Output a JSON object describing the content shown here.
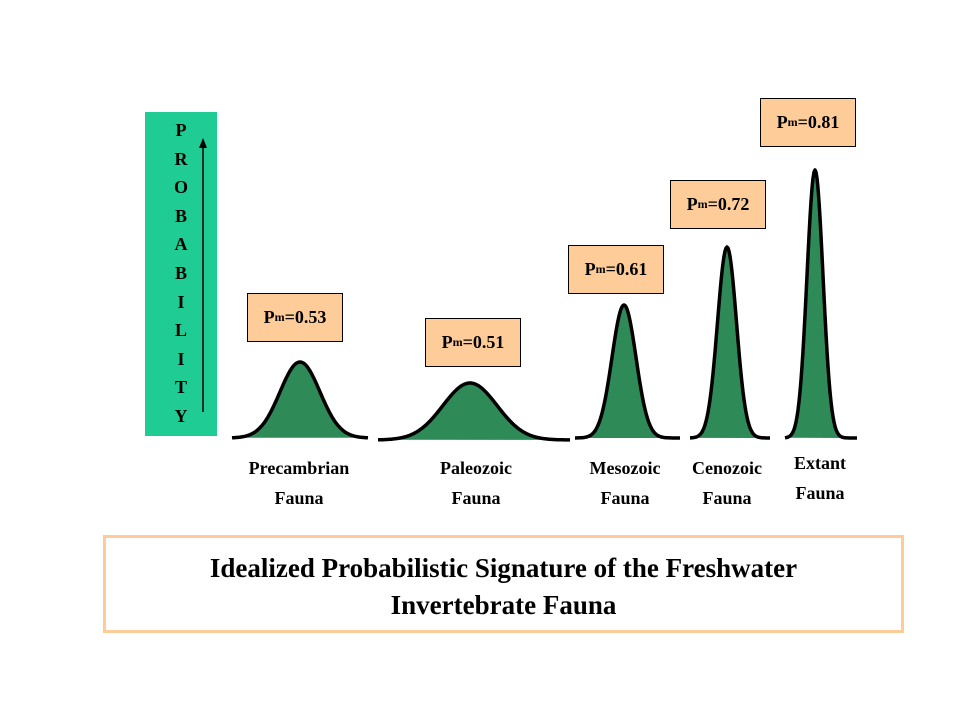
{
  "axis_label_letters": [
    "P",
    "R",
    "O",
    "B",
    "A",
    "B",
    "I",
    "L",
    "I",
    "T",
    "Y"
  ],
  "faunas": [
    {
      "label_lines": [
        "Precambrian",
        "Fauna"
      ],
      "pm": {
        "symbol": "P",
        "subscript": "m",
        "text": "=0.53"
      }
    },
    {
      "label_lines": [
        "Paleozoic",
        "Fauna"
      ],
      "pm": {
        "symbol": "P",
        "subscript": "m",
        "text": "=0.51"
      }
    },
    {
      "label_lines": [
        "Mesozoic",
        "Fauna"
      ],
      "pm": {
        "symbol": "P",
        "subscript": "m",
        "text": "=0.61"
      }
    },
    {
      "label_lines": [
        "Cenozoic",
        "Fauna"
      ],
      "pm": {
        "symbol": "P",
        "subscript": "m",
        "text": "=0.72"
      }
    },
    {
      "label_lines": [
        "Extant",
        "Fauna"
      ],
      "pm": {
        "symbol": "P",
        "subscript": "m",
        "text": "=0.81"
      }
    }
  ],
  "caption_lines": [
    "Idealized Probabilistic Signature of the Freshwater",
    "Invertebrate Fauna"
  ]
}
